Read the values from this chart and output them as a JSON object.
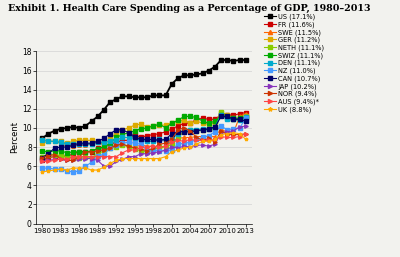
{
  "title": "Exhibit 1. Health Care Spending as a Percentage of GDP, 1980–2013",
  "ylabel": "Percent",
  "years": [
    1980,
    1981,
    1982,
    1983,
    1984,
    1985,
    1986,
    1987,
    1988,
    1989,
    1990,
    1991,
    1992,
    1993,
    1994,
    1995,
    1996,
    1997,
    1998,
    1999,
    2000,
    2001,
    2002,
    2003,
    2004,
    2005,
    2006,
    2007,
    2008,
    2009,
    2010,
    2011,
    2012,
    2013
  ],
  "series": {
    "US": [
      8.9,
      9.4,
      9.7,
      9.9,
      10.0,
      10.1,
      10.0,
      10.2,
      10.7,
      11.2,
      11.9,
      12.7,
      13.0,
      13.3,
      13.3,
      13.2,
      13.2,
      13.2,
      13.4,
      13.4,
      13.4,
      14.6,
      15.2,
      15.5,
      15.5,
      15.6,
      15.7,
      16.0,
      16.4,
      17.1,
      17.1,
      17.0,
      17.1,
      17.1
    ],
    "FR": [
      6.6,
      6.9,
      7.0,
      7.1,
      7.0,
      7.3,
      7.5,
      7.5,
      7.5,
      7.9,
      8.0,
      8.3,
      8.5,
      8.7,
      8.7,
      9.3,
      9.0,
      9.2,
      9.3,
      9.4,
      9.6,
      9.9,
      10.2,
      10.5,
      10.5,
      10.9,
      11.0,
      10.9,
      10.9,
      11.4,
      11.4,
      11.3,
      11.5,
      11.6
    ],
    "SWE": [
      8.8,
      8.6,
      8.6,
      8.4,
      8.1,
      8.1,
      8.2,
      8.2,
      8.3,
      8.5,
      8.2,
      8.1,
      8.1,
      8.4,
      7.9,
      8.0,
      8.2,
      8.1,
      8.1,
      7.7,
      8.2,
      8.6,
      8.9,
      9.0,
      9.0,
      9.1,
      9.1,
      9.1,
      9.1,
      9.9,
      9.5,
      9.5,
      11.2,
      11.5
    ],
    "GER": [
      8.4,
      8.6,
      8.6,
      8.6,
      8.4,
      8.6,
      8.7,
      8.7,
      8.7,
      8.5,
      8.3,
      8.8,
      9.5,
      9.8,
      10.0,
      10.3,
      10.4,
      10.1,
      10.2,
      10.3,
      10.3,
      10.5,
      10.7,
      10.8,
      10.5,
      10.7,
      10.5,
      10.4,
      10.5,
      11.6,
      11.4,
      11.0,
      11.0,
      11.2
    ],
    "NETH": [
      7.0,
      7.2,
      7.2,
      7.1,
      7.0,
      6.9,
      6.9,
      7.0,
      6.9,
      7.3,
      7.6,
      7.9,
      8.0,
      8.2,
      8.1,
      7.8,
      7.6,
      7.5,
      7.7,
      8.0,
      8.0,
      8.3,
      8.9,
      9.7,
      9.8,
      9.7,
      9.8,
      10.0,
      9.9,
      11.7,
      11.0,
      10.9,
      11.0,
      11.1
    ],
    "SWIZ": [
      7.6,
      7.5,
      7.6,
      7.6,
      7.4,
      7.5,
      7.5,
      7.5,
      7.6,
      7.8,
      8.0,
      8.4,
      9.0,
      9.3,
      9.5,
      9.7,
      9.9,
      10.0,
      10.2,
      10.4,
      10.0,
      10.5,
      10.8,
      11.2,
      11.2,
      11.1,
      10.7,
      10.5,
      10.7,
      11.3,
      11.1,
      11.0,
      11.0,
      11.1
    ],
    "DEN": [
      8.7,
      8.6,
      8.6,
      8.5,
      8.3,
      8.3,
      8.3,
      8.3,
      8.3,
      8.5,
      8.5,
      8.6,
      8.7,
      9.0,
      9.0,
      8.9,
      8.7,
      8.6,
      8.6,
      8.8,
      8.7,
      8.9,
      9.4,
      9.8,
      9.8,
      9.8,
      9.9,
      9.9,
      10.1,
      11.4,
      10.9,
      10.9,
      10.8,
      11.1
    ],
    "NZ": [
      5.8,
      5.8,
      5.7,
      5.7,
      5.5,
      5.4,
      5.5,
      6.0,
      6.4,
      7.1,
      7.2,
      7.9,
      8.2,
      8.4,
      8.5,
      8.4,
      8.3,
      7.6,
      7.7,
      7.6,
      7.6,
      7.7,
      8.3,
      8.4,
      8.5,
      8.8,
      9.0,
      9.2,
      9.6,
      10.2,
      9.8,
      9.9,
      10.0,
      11.0
    ],
    "CAN": [
      6.9,
      7.3,
      7.9,
      8.0,
      8.0,
      8.2,
      8.4,
      8.4,
      8.4,
      8.6,
      8.9,
      9.4,
      9.8,
      9.8,
      9.5,
      9.1,
      8.8,
      8.8,
      8.8,
      8.7,
      8.8,
      9.4,
      9.6,
      9.6,
      9.6,
      9.7,
      9.8,
      9.9,
      10.1,
      11.2,
      11.2,
      10.9,
      10.9,
      10.7
    ],
    "JAP": [
      6.5,
      6.6,
      6.7,
      6.7,
      6.6,
      6.6,
      6.7,
      6.8,
      6.8,
      6.6,
      6.0,
      6.0,
      6.5,
      6.7,
      7.0,
      7.0,
      7.3,
      7.3,
      7.4,
      7.5,
      7.7,
      8.0,
      7.9,
      8.1,
      8.0,
      8.2,
      8.2,
      8.1,
      8.3,
      9.5,
      9.6,
      9.7,
      10.1,
      10.2
    ],
    "NOR": [
      6.9,
      7.1,
      7.2,
      6.8,
      6.6,
      6.6,
      7.0,
      7.5,
      7.5,
      7.6,
      7.7,
      7.9,
      8.2,
      8.3,
      8.1,
      7.9,
      7.8,
      7.6,
      7.9,
      8.3,
      8.4,
      8.8,
      9.8,
      10.0,
      9.7,
      9.0,
      8.7,
      8.9,
      8.5,
      9.7,
      9.3,
      9.3,
      9.3,
      9.4
    ],
    "AUS": [
      6.5,
      6.5,
      6.6,
      6.8,
      6.7,
      7.0,
      7.0,
      7.0,
      7.0,
      7.0,
      7.0,
      7.0,
      7.0,
      7.4,
      7.7,
      7.7,
      8.0,
      8.0,
      8.1,
      8.0,
      8.1,
      8.5,
      8.7,
      8.6,
      8.8,
      8.7,
      8.7,
      8.7,
      8.8,
      9.1,
      9.0,
      9.0,
      9.1,
      9.4
    ],
    "UK": [
      5.4,
      5.5,
      5.6,
      5.7,
      5.6,
      5.8,
      5.8,
      5.8,
      5.6,
      5.6,
      5.9,
      6.3,
      6.6,
      6.8,
      6.8,
      6.8,
      6.8,
      6.8,
      6.8,
      6.8,
      7.0,
      7.5,
      7.7,
      7.9,
      8.0,
      8.3,
      8.6,
      8.6,
      8.8,
      9.3,
      9.4,
      9.5,
      9.4,
      8.8
    ]
  },
  "colors": {
    "US": "#000000",
    "FR": "#cc0000",
    "SWE": "#ff6600",
    "GER": "#ddaa00",
    "NETH": "#88cc00",
    "SWIZ": "#00aa00",
    "DEN": "#00aacc",
    "NZ": "#4499ff",
    "CAN": "#000066",
    "JAP": "#8833bb",
    "NOR": "#cc3300",
    "AUS": "#ff4444",
    "UK": "#ffaa00"
  },
  "labels": {
    "US": "US (17.1%)",
    "FR": "FR (11.6%)",
    "SWE": "SWE (11.5%)",
    "GER": "GER (11.2%)",
    "NETH": "NETH (11.1%)",
    "SWIZ": "SWIZ (11.1%)",
    "DEN": "DEN (11.1%)",
    "NZ": "NZ (11.0%)",
    "CAN": "CAN (10.7%)",
    "JAP": "JAP (10.2%)",
    "NOR": "NOR (9.4%)",
    "AUS": "AUS (9.4%)*",
    "UK": "UK (8.8%)"
  },
  "ylim": [
    0,
    18
  ],
  "yticks": [
    0,
    2,
    4,
    6,
    8,
    10,
    12,
    14,
    16,
    18
  ],
  "xticks": [
    1980,
    1983,
    1986,
    1989,
    1992,
    1995,
    1998,
    2001,
    2004,
    2007,
    2010,
    2013
  ],
  "bg_color": "#f2f2ee"
}
